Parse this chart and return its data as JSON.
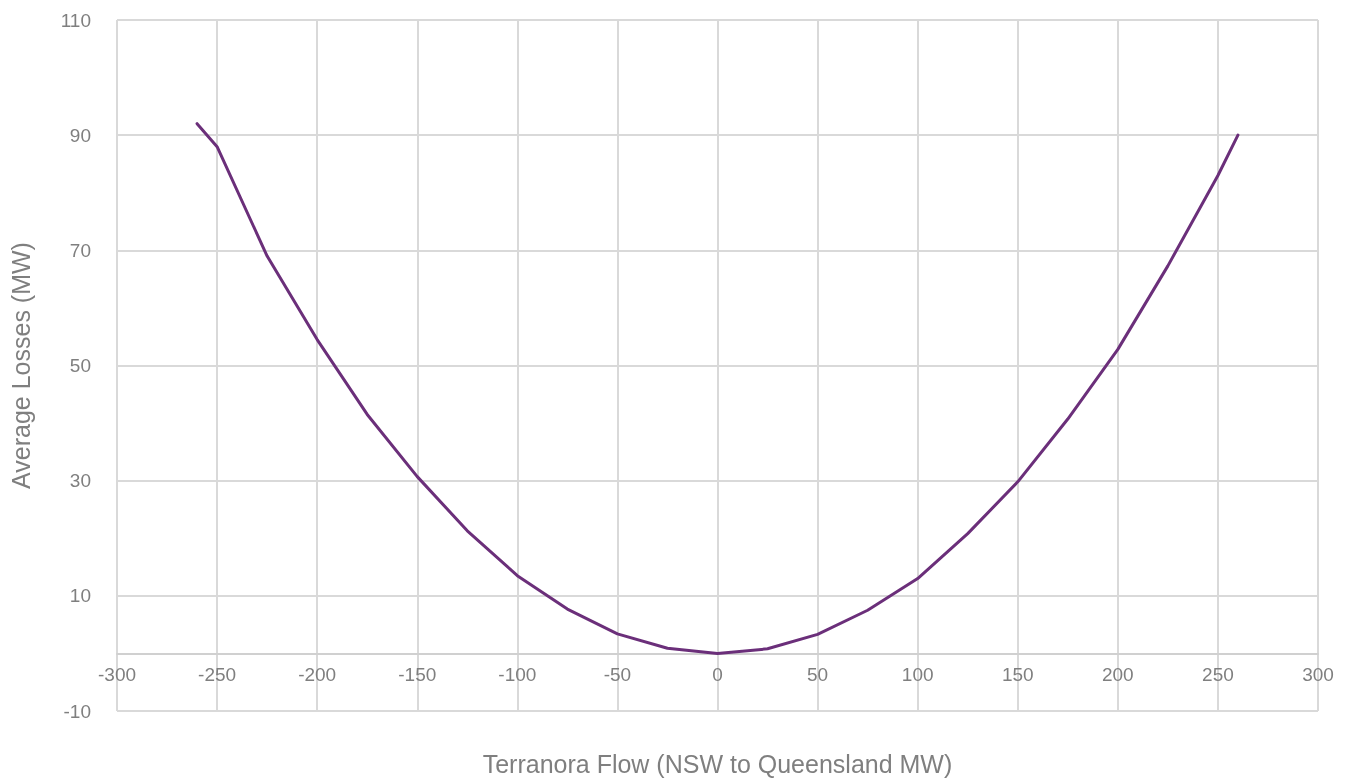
{
  "chart_data": {
    "type": "line",
    "xlabel": "Terranora Flow (NSW to Queensland MW)",
    "ylabel": "Average Losses (MW)",
    "x": [
      -260,
      -250,
      -225,
      -200,
      -175,
      -150,
      -125,
      -100,
      -75,
      -50,
      -25,
      0,
      25,
      50,
      75,
      100,
      125,
      150,
      175,
      200,
      225,
      250,
      260
    ],
    "series": [
      {
        "color": "#6b2f7a",
        "values": [
          92,
          88,
          69,
          54.5,
          41.5,
          30.7,
          21.3,
          13.5,
          7.7,
          3.4,
          0.9,
          0,
          0.8,
          3.3,
          7.5,
          13,
          20.8,
          29.8,
          40.7,
          52.8,
          67.3,
          83,
          90
        ]
      }
    ],
    "xlim": [
      -300,
      300
    ],
    "xticks": [
      -300,
      -250,
      -200,
      -150,
      -100,
      -50,
      0,
      50,
      100,
      150,
      200,
      250,
      300
    ],
    "ylim": [
      -10,
      110
    ],
    "yticks": [
      -10,
      10,
      30,
      50,
      70,
      90,
      110
    ],
    "grid": true,
    "marker": "none",
    "line_style": "solid"
  }
}
